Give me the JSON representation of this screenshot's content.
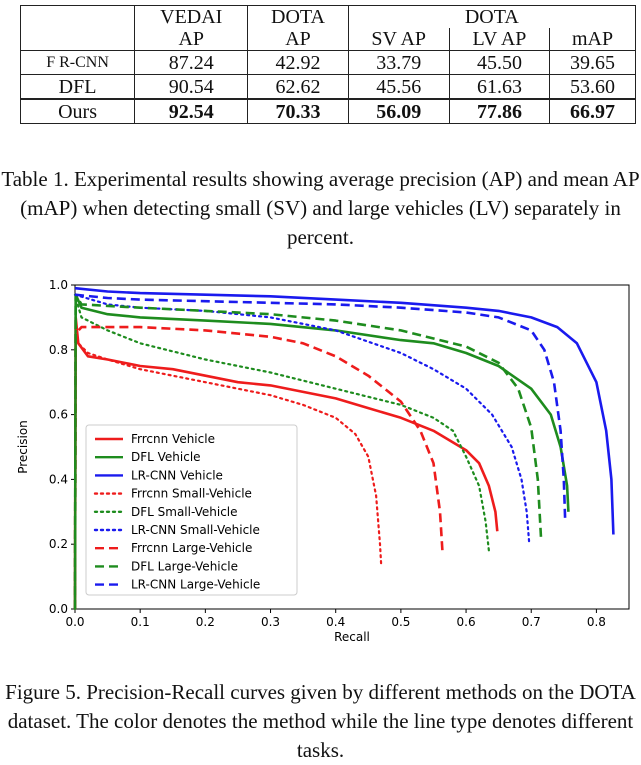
{
  "table": {
    "header_row1": [
      "VEDAI",
      "DOTA",
      "DOTA"
    ],
    "header_row2": [
      "AP",
      "AP",
      "SV AP",
      "LV AP",
      "mAP"
    ],
    "rows": [
      {
        "method": "F R-CNN",
        "values": [
          "87.24",
          "42.92",
          "33.79",
          "45.50",
          "39.65"
        ]
      },
      {
        "method": "DFL",
        "values": [
          "90.54",
          "62.62",
          "45.56",
          "61.63",
          "53.60"
        ]
      },
      {
        "method": "Ours",
        "values": [
          "92.54",
          "70.33",
          "56.09",
          "77.86",
          "66.97"
        ]
      }
    ],
    "caption": "Table 1. Experimental results showing average precision (AP) and mean AP (mAP) when detecting small (SV) and large vehicles (LV) separately in percent."
  },
  "figure": {
    "caption": "Figure 5. Precision-Recall curves given by different methods on the DOTA dataset. The color denotes the method while the line type denotes different tasks."
  },
  "colors": {
    "frrcnn": "#ee1c1c",
    "dfl": "#1e8c1e",
    "lrcnn": "#1a1aee"
  },
  "chart_data": {
    "type": "line",
    "title": "",
    "xlabel": "Recall",
    "ylabel": "Precision",
    "xlim": [
      0.0,
      0.85
    ],
    "ylim": [
      0.0,
      1.0
    ],
    "xticks": [
      "0.0",
      "0.1",
      "0.2",
      "0.3",
      "0.4",
      "0.5",
      "0.6",
      "0.7",
      "0.8"
    ],
    "yticks": [
      "0.0",
      "0.2",
      "0.4",
      "0.6",
      "0.8",
      "1.0"
    ],
    "legend_position": "lower-left",
    "series": [
      {
        "name": "Frrcnn Vehicle",
        "color": "frrcnn",
        "style": "solid",
        "points": [
          [
            0.0,
            0.0
          ],
          [
            0.001,
            0.9
          ],
          [
            0.005,
            0.82
          ],
          [
            0.02,
            0.78
          ],
          [
            0.05,
            0.77
          ],
          [
            0.1,
            0.75
          ],
          [
            0.15,
            0.74
          ],
          [
            0.2,
            0.72
          ],
          [
            0.25,
            0.7
          ],
          [
            0.3,
            0.69
          ],
          [
            0.35,
            0.67
          ],
          [
            0.4,
            0.65
          ],
          [
            0.45,
            0.62
          ],
          [
            0.5,
            0.59
          ],
          [
            0.55,
            0.55
          ],
          [
            0.6,
            0.49
          ],
          [
            0.62,
            0.45
          ],
          [
            0.635,
            0.38
          ],
          [
            0.645,
            0.3
          ],
          [
            0.648,
            0.24
          ]
        ]
      },
      {
        "name": "DFL Vehicle",
        "color": "dfl",
        "style": "solid",
        "points": [
          [
            0.0,
            0.0
          ],
          [
            0.001,
            0.97
          ],
          [
            0.01,
            0.93
          ],
          [
            0.05,
            0.91
          ],
          [
            0.1,
            0.9
          ],
          [
            0.2,
            0.89
          ],
          [
            0.3,
            0.88
          ],
          [
            0.4,
            0.86
          ],
          [
            0.5,
            0.83
          ],
          [
            0.55,
            0.82
          ],
          [
            0.6,
            0.79
          ],
          [
            0.65,
            0.75
          ],
          [
            0.7,
            0.68
          ],
          [
            0.73,
            0.6
          ],
          [
            0.745,
            0.5
          ],
          [
            0.755,
            0.38
          ],
          [
            0.757,
            0.3
          ]
        ]
      },
      {
        "name": "LR-CNN Vehicle",
        "color": "lrcnn",
        "style": "solid",
        "points": [
          [
            0.0,
            0.99
          ],
          [
            0.05,
            0.98
          ],
          [
            0.1,
            0.975
          ],
          [
            0.2,
            0.97
          ],
          [
            0.3,
            0.965
          ],
          [
            0.4,
            0.955
          ],
          [
            0.5,
            0.945
          ],
          [
            0.6,
            0.93
          ],
          [
            0.65,
            0.92
          ],
          [
            0.7,
            0.9
          ],
          [
            0.74,
            0.87
          ],
          [
            0.77,
            0.82
          ],
          [
            0.8,
            0.7
          ],
          [
            0.815,
            0.55
          ],
          [
            0.823,
            0.4
          ],
          [
            0.826,
            0.23
          ]
        ]
      },
      {
        "name": "Frrcnn Small-Vehicle",
        "color": "frrcnn",
        "style": "dotted",
        "points": [
          [
            0.0,
            0.0
          ],
          [
            0.001,
            0.88
          ],
          [
            0.005,
            0.82
          ],
          [
            0.02,
            0.79
          ],
          [
            0.05,
            0.77
          ],
          [
            0.1,
            0.74
          ],
          [
            0.15,
            0.72
          ],
          [
            0.2,
            0.7
          ],
          [
            0.25,
            0.68
          ],
          [
            0.3,
            0.66
          ],
          [
            0.35,
            0.63
          ],
          [
            0.4,
            0.59
          ],
          [
            0.43,
            0.54
          ],
          [
            0.45,
            0.47
          ],
          [
            0.462,
            0.35
          ],
          [
            0.468,
            0.2
          ],
          [
            0.47,
            0.13
          ]
        ]
      },
      {
        "name": "DFL Small-Vehicle",
        "color": "dfl",
        "style": "dotted",
        "points": [
          [
            0.0,
            0.0
          ],
          [
            0.001,
            0.96
          ],
          [
            0.01,
            0.9
          ],
          [
            0.05,
            0.86
          ],
          [
            0.1,
            0.82
          ],
          [
            0.2,
            0.77
          ],
          [
            0.3,
            0.73
          ],
          [
            0.4,
            0.68
          ],
          [
            0.5,
            0.63
          ],
          [
            0.55,
            0.59
          ],
          [
            0.58,
            0.55
          ],
          [
            0.6,
            0.47
          ],
          [
            0.62,
            0.38
          ],
          [
            0.63,
            0.27
          ],
          [
            0.635,
            0.18
          ]
        ]
      },
      {
        "name": "LR-CNN Small-Vehicle",
        "color": "lrcnn",
        "style": "dotted",
        "points": [
          [
            0.0,
            0.97
          ],
          [
            0.05,
            0.94
          ],
          [
            0.1,
            0.93
          ],
          [
            0.2,
            0.92
          ],
          [
            0.3,
            0.9
          ],
          [
            0.4,
            0.86
          ],
          [
            0.5,
            0.79
          ],
          [
            0.55,
            0.74
          ],
          [
            0.6,
            0.68
          ],
          [
            0.64,
            0.6
          ],
          [
            0.67,
            0.5
          ],
          [
            0.685,
            0.4
          ],
          [
            0.693,
            0.3
          ],
          [
            0.697,
            0.2
          ]
        ]
      },
      {
        "name": "Frrcnn Large-Vehicle",
        "color": "frrcnn",
        "style": "dashed",
        "points": [
          [
            0.0,
            0.0
          ],
          [
            0.001,
            0.85
          ],
          [
            0.01,
            0.87
          ],
          [
            0.05,
            0.87
          ],
          [
            0.1,
            0.87
          ],
          [
            0.2,
            0.86
          ],
          [
            0.3,
            0.84
          ],
          [
            0.35,
            0.82
          ],
          [
            0.4,
            0.78
          ],
          [
            0.45,
            0.72
          ],
          [
            0.5,
            0.64
          ],
          [
            0.53,
            0.55
          ],
          [
            0.55,
            0.45
          ],
          [
            0.56,
            0.3
          ],
          [
            0.564,
            0.17
          ]
        ]
      },
      {
        "name": "DFL Large-Vehicle",
        "color": "dfl",
        "style": "dashed",
        "points": [
          [
            0.0,
            0.0
          ],
          [
            0.001,
            0.97
          ],
          [
            0.01,
            0.94
          ],
          [
            0.1,
            0.93
          ],
          [
            0.2,
            0.92
          ],
          [
            0.3,
            0.91
          ],
          [
            0.4,
            0.89
          ],
          [
            0.5,
            0.86
          ],
          [
            0.6,
            0.81
          ],
          [
            0.65,
            0.76
          ],
          [
            0.68,
            0.68
          ],
          [
            0.7,
            0.56
          ],
          [
            0.71,
            0.4
          ],
          [
            0.715,
            0.22
          ]
        ]
      },
      {
        "name": "LR-CNN Large-Vehicle",
        "color": "lrcnn",
        "style": "dashed",
        "points": [
          [
            0.0,
            0.97
          ],
          [
            0.05,
            0.96
          ],
          [
            0.1,
            0.955
          ],
          [
            0.2,
            0.95
          ],
          [
            0.3,
            0.945
          ],
          [
            0.4,
            0.94
          ],
          [
            0.5,
            0.93
          ],
          [
            0.6,
            0.915
          ],
          [
            0.65,
            0.9
          ],
          [
            0.7,
            0.86
          ],
          [
            0.72,
            0.8
          ],
          [
            0.735,
            0.7
          ],
          [
            0.745,
            0.55
          ],
          [
            0.75,
            0.4
          ],
          [
            0.752,
            0.28
          ]
        ]
      }
    ]
  }
}
